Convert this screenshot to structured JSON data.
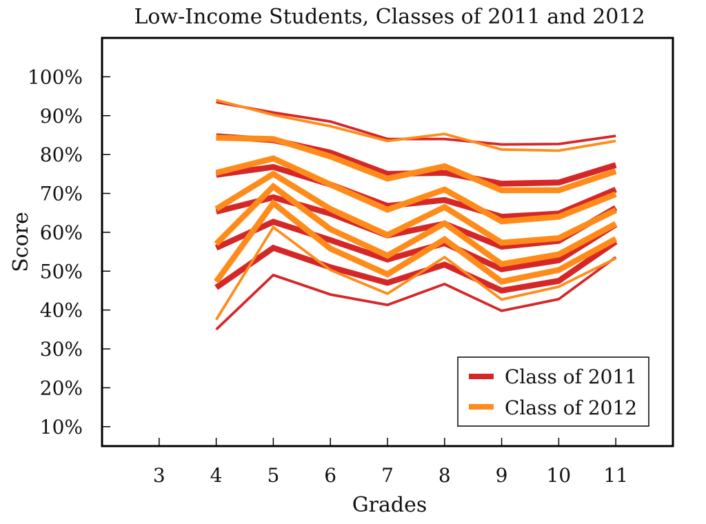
{
  "chart_data": {
    "type": "line",
    "title": "Low-Income Students, Classes of 2011 and 2012",
    "xlabel": "Grades",
    "ylabel": "Score",
    "x_ticks": [
      "3",
      "4",
      "5",
      "6",
      "7",
      "8",
      "9",
      "10",
      "11"
    ],
    "y_ticks": [
      "10%",
      "20%",
      "30%",
      "40%",
      "50%",
      "60%",
      "70%",
      "80%",
      "90%",
      "100%"
    ],
    "xlim": [
      2,
      12
    ],
    "ylim": [
      5,
      110
    ],
    "grid": false,
    "legend_position": "bottom-right",
    "x": [
      4,
      5,
      6,
      7,
      8,
      9,
      10,
      11
    ],
    "series": [
      {
        "name": "Class of 2011",
        "color": "#d62728",
        "bands": [
          {
            "weight": 4,
            "values": [
              35,
              49,
              44,
              41.3,
              46.7,
              39.8,
              42.8,
              53.6
            ]
          },
          {
            "weight": 9,
            "values": [
              45.8,
              56,
              51,
              47,
              51.7,
              45,
              47.5,
              57.6
            ]
          },
          {
            "weight": 9,
            "values": [
              56,
              62.7,
              58,
              53,
              57.2,
              50.5,
              52.8,
              62
            ]
          },
          {
            "weight": 9,
            "values": [
              65.3,
              69,
              64.8,
              59.2,
              62.2,
              56.3,
              57.8,
              66.3
            ]
          },
          {
            "weight": 9,
            "values": [
              74.8,
              76.8,
              72.3,
              66.8,
              68.3,
              64,
              64.8,
              71
            ]
          },
          {
            "weight": 9,
            "values": [
              84.7,
              83.7,
              80.5,
              75,
              75.3,
              72.5,
              72.8,
              77.3
            ]
          },
          {
            "weight": 4,
            "values": [
              93.5,
              90.8,
              88.5,
              84,
              84,
              82.6,
              82.7,
              84.8
            ]
          }
        ]
      },
      {
        "name": "Class of 2012",
        "color": "#ff8c1a",
        "bands": [
          {
            "weight": 4,
            "values": [
              37.5,
              61.3,
              50.3,
              44.2,
              53.6,
              42.7,
              46,
              53.3
            ]
          },
          {
            "weight": 9,
            "values": [
              47.3,
              67.5,
              55.8,
              49.2,
              58.2,
              47.3,
              50.3,
              58.3
            ]
          },
          {
            "weight": 9,
            "values": [
              57,
              71.8,
              60.8,
              54,
              62.3,
              51.8,
              54.3,
              62.2
            ]
          },
          {
            "weight": 9,
            "values": [
              66,
              75,
              66,
              59.3,
              66.5,
              57.3,
              58.5,
              65.7
            ]
          },
          {
            "weight": 9,
            "values": [
              75.3,
              79,
              72.3,
              65.8,
              71,
              62.8,
              64,
              69.8
            ]
          },
          {
            "weight": 9,
            "values": [
              84.3,
              84,
              79.5,
              73.8,
              77,
              70.8,
              70.8,
              75.7
            ]
          },
          {
            "weight": 4,
            "values": [
              94,
              90.2,
              87.3,
              83.5,
              85.3,
              81.3,
              81,
              83.5
            ]
          }
        ]
      }
    ]
  }
}
